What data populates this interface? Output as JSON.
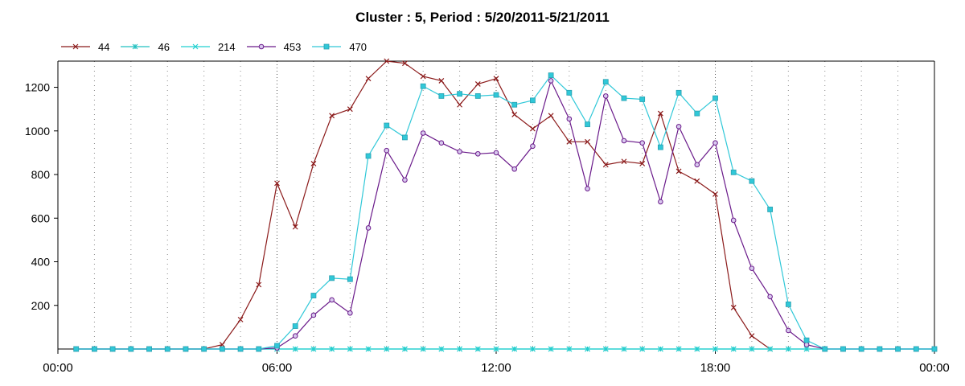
{
  "chart_data": {
    "type": "line",
    "title": "Cluster : 5, Period : 5/20/2011-5/21/2011",
    "xlabel": "",
    "ylabel": "",
    "x_ticks": [
      "00:00",
      "06:00",
      "12:00",
      "18:00",
      "00:00"
    ],
    "y_ticks": [
      "200",
      "400",
      "600",
      "800",
      "1000",
      "1200"
    ],
    "xlim_hours": [
      0,
      24
    ],
    "ylim": [
      0,
      1320
    ],
    "grid": "vertical dotted lines",
    "legend_position": "top-left",
    "x_hours": [
      0.5,
      1,
      1.5,
      2,
      2.5,
      3,
      3.5,
      4,
      4.5,
      5,
      5.5,
      6,
      6.5,
      7,
      7.5,
      8,
      8.5,
      9,
      9.5,
      10,
      10.5,
      11,
      11.5,
      12,
      12.5,
      13,
      13.5,
      14,
      14.5,
      15,
      15.5,
      16,
      16.5,
      17,
      17.5,
      18,
      18.5,
      19,
      19.5,
      20,
      20.5,
      21,
      21.5,
      22,
      22.5,
      23,
      23.5,
      24
    ],
    "series": [
      {
        "name": "44",
        "color": "#8b1a1a",
        "marker": "x",
        "values": [
          0,
          0,
          0,
          0,
          0,
          0,
          0,
          0,
          20,
          135,
          295,
          760,
          560,
          850,
          1070,
          1100,
          1240,
          1320,
          1310,
          1250,
          1230,
          1120,
          1215,
          1240,
          1075,
          1010,
          1070,
          950,
          950,
          845,
          860,
          850,
          1080,
          815,
          770,
          710,
          190,
          60,
          0,
          null,
          null,
          null,
          null,
          null,
          null,
          null,
          null,
          null
        ]
      },
      {
        "name": "46",
        "color": "#20c0c0",
        "marker": "star",
        "values": [
          0,
          0,
          0,
          0,
          0,
          0,
          0,
          0,
          0,
          0,
          0,
          0,
          0,
          0,
          0,
          0,
          0,
          0,
          0,
          0,
          0,
          0,
          0,
          0,
          0,
          0,
          0,
          0,
          0,
          0,
          0,
          0,
          0,
          0,
          0,
          0,
          0,
          0,
          0,
          0,
          0,
          0,
          0,
          0,
          0,
          0,
          0,
          0
        ]
      },
      {
        "name": "214",
        "color": "#20d0d0",
        "marker": "x",
        "values": [
          0,
          0,
          0,
          0,
          0,
          0,
          0,
          0,
          0,
          0,
          0,
          0,
          0,
          0,
          0,
          0,
          0,
          0,
          0,
          0,
          0,
          0,
          0,
          0,
          0,
          0,
          0,
          0,
          0,
          0,
          0,
          0,
          0,
          0,
          0,
          0,
          0,
          0,
          0,
          0,
          0,
          0,
          0,
          0,
          0,
          0,
          0,
          0
        ]
      },
      {
        "name": "453",
        "color": "#6a1a8a",
        "marker": "circle",
        "values": [
          0,
          0,
          0,
          0,
          0,
          0,
          0,
          0,
          0,
          0,
          0,
          5,
          60,
          155,
          225,
          165,
          555,
          910,
          775,
          990,
          945,
          905,
          895,
          900,
          825,
          930,
          1230,
          1055,
          735,
          1160,
          955,
          945,
          675,
          1020,
          845,
          945,
          590,
          370,
          240,
          85,
          20,
          0,
          0,
          0,
          0,
          0,
          0,
          0
        ]
      },
      {
        "name": "470",
        "color": "#30c8d8",
        "marker": "square",
        "values": [
          0,
          0,
          0,
          0,
          0,
          0,
          0,
          0,
          0,
          0,
          0,
          15,
          105,
          245,
          325,
          320,
          885,
          1025,
          970,
          1205,
          1160,
          1170,
          1160,
          1165,
          1120,
          1140,
          1255,
          1175,
          1030,
          1225,
          1150,
          1145,
          925,
          1175,
          1080,
          1150,
          810,
          770,
          640,
          205,
          40,
          0,
          0,
          0,
          0,
          0,
          0,
          0
        ]
      }
    ]
  }
}
